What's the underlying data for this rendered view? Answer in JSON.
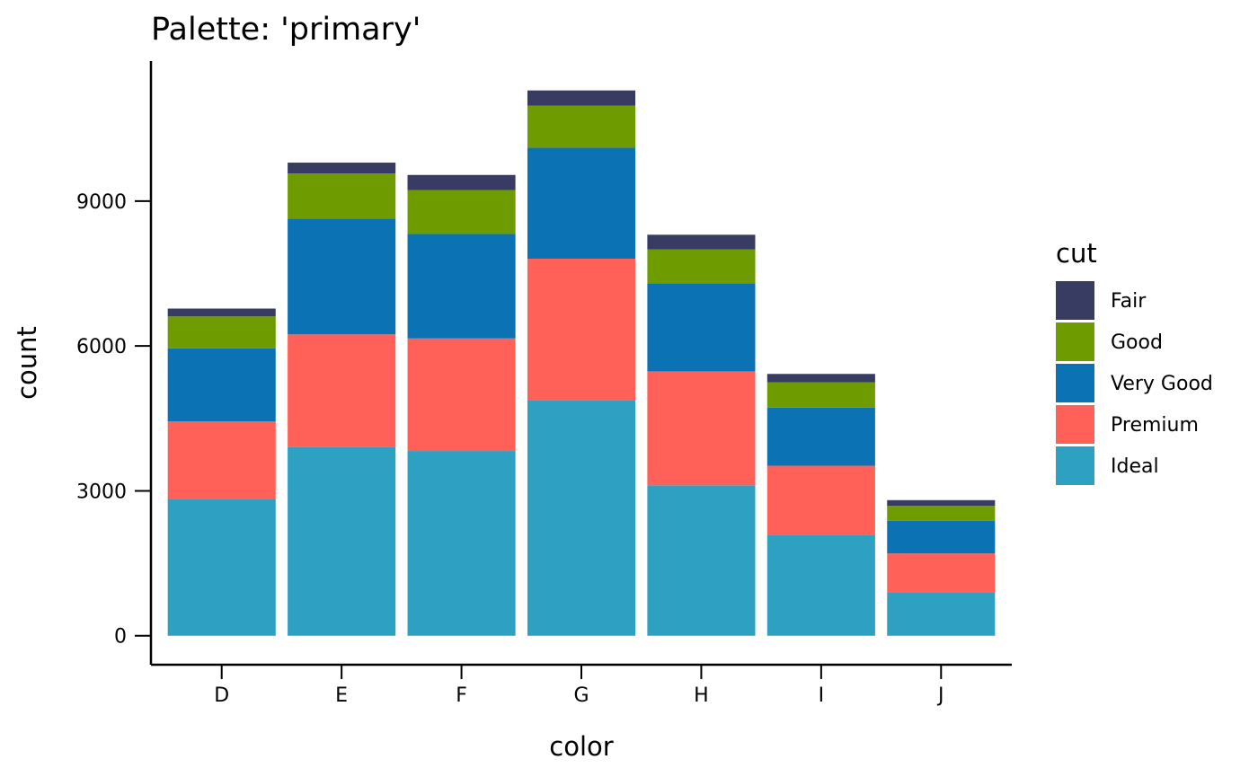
{
  "chart_data": {
    "type": "bar",
    "stacked": true,
    "title": "Palette: 'primary'",
    "xlabel": "color",
    "ylabel": "count",
    "categories": [
      "D",
      "E",
      "F",
      "G",
      "H",
      "I",
      "J"
    ],
    "yticks": [
      0,
      3000,
      6000,
      9000
    ],
    "ylim": [
      -600,
      11900
    ],
    "legend": {
      "title": "cut",
      "position": "right"
    },
    "series": [
      {
        "name": "Ideal",
        "color": "#2EA1C2",
        "values": [
          2834,
          3903,
          3826,
          4884,
          3115,
          2093,
          896
        ]
      },
      {
        "name": "Premium",
        "color": "#FF6158",
        "values": [
          1603,
          2337,
          2331,
          2924,
          2360,
          1428,
          808
        ]
      },
      {
        "name": "Very Good",
        "color": "#0B73B4",
        "values": [
          1513,
          2400,
          2164,
          2299,
          1824,
          1204,
          678
        ]
      },
      {
        "name": "Good",
        "color": "#6D9B00",
        "values": [
          662,
          933,
          909,
          871,
          702,
          522,
          307
        ]
      },
      {
        "name": "Fair",
        "color": "#383B62",
        "values": [
          163,
          224,
          312,
          314,
          303,
          175,
          119
        ]
      }
    ],
    "legend_order": [
      "Fair",
      "Good",
      "Very Good",
      "Premium",
      "Ideal"
    ]
  }
}
